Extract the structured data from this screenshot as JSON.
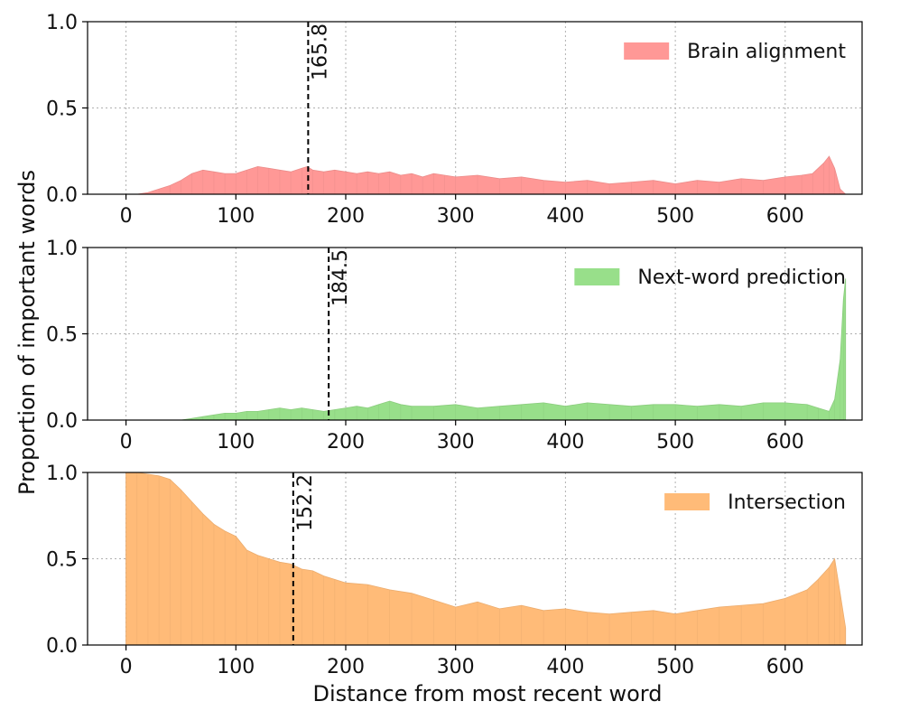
{
  "figure": {
    "ylabel": "Proportion of important words",
    "xlabel": "Distance from most recent word"
  },
  "chart_data": [
    {
      "type": "area",
      "legend": "Brain alignment",
      "legend_position": "top-right",
      "color": "#ff9896",
      "grid": true,
      "xlim": [
        -35,
        670
      ],
      "ylim": [
        0,
        1
      ],
      "xticks": [
        "0",
        "100",
        "200",
        "300",
        "400",
        "500",
        "600"
      ],
      "yticks": [
        "0.0",
        "0.5",
        "1.0"
      ],
      "mean_line": 165.8,
      "mean_label": "165.8",
      "x": [
        0,
        10,
        20,
        30,
        40,
        50,
        60,
        70,
        80,
        90,
        100,
        110,
        120,
        130,
        140,
        150,
        160,
        165,
        170,
        180,
        190,
        200,
        210,
        220,
        230,
        240,
        250,
        260,
        270,
        280,
        290,
        300,
        320,
        340,
        360,
        380,
        400,
        420,
        440,
        460,
        480,
        500,
        520,
        540,
        560,
        580,
        600,
        615,
        625,
        635,
        640,
        645,
        650,
        655
      ],
      "y": [
        0.0,
        0.0,
        0.01,
        0.03,
        0.05,
        0.08,
        0.12,
        0.14,
        0.13,
        0.12,
        0.12,
        0.14,
        0.16,
        0.15,
        0.14,
        0.13,
        0.15,
        0.16,
        0.14,
        0.13,
        0.14,
        0.13,
        0.12,
        0.13,
        0.12,
        0.13,
        0.11,
        0.12,
        0.1,
        0.12,
        0.11,
        0.1,
        0.11,
        0.09,
        0.1,
        0.08,
        0.07,
        0.08,
        0.06,
        0.07,
        0.08,
        0.06,
        0.08,
        0.07,
        0.09,
        0.08,
        0.1,
        0.11,
        0.12,
        0.18,
        0.22,
        0.15,
        0.03,
        0.0
      ]
    },
    {
      "type": "area",
      "legend": "Next-word prediction",
      "legend_position": "top-right",
      "color": "#98df8a",
      "grid": true,
      "xlim": [
        -35,
        670
      ],
      "ylim": [
        0,
        1
      ],
      "xticks": [
        "0",
        "100",
        "200",
        "300",
        "400",
        "500",
        "600"
      ],
      "yticks": [
        "0.0",
        "0.5",
        "1.0"
      ],
      "mean_line": 184.5,
      "mean_label": "184.5",
      "x": [
        0,
        40,
        50,
        60,
        70,
        80,
        90,
        100,
        110,
        120,
        130,
        140,
        150,
        160,
        170,
        180,
        190,
        200,
        210,
        220,
        230,
        240,
        250,
        260,
        280,
        300,
        320,
        340,
        360,
        380,
        400,
        420,
        440,
        460,
        480,
        500,
        520,
        540,
        560,
        580,
        600,
        620,
        630,
        640,
        645,
        650,
        653,
        655
      ],
      "y": [
        0.0,
        0.0,
        0.0,
        0.01,
        0.02,
        0.03,
        0.04,
        0.04,
        0.05,
        0.05,
        0.06,
        0.07,
        0.06,
        0.07,
        0.06,
        0.05,
        0.06,
        0.07,
        0.08,
        0.07,
        0.09,
        0.11,
        0.09,
        0.08,
        0.08,
        0.09,
        0.07,
        0.08,
        0.09,
        0.1,
        0.08,
        0.1,
        0.09,
        0.08,
        0.09,
        0.09,
        0.08,
        0.09,
        0.08,
        0.1,
        0.1,
        0.09,
        0.07,
        0.05,
        0.12,
        0.35,
        0.7,
        0.82
      ]
    },
    {
      "type": "area",
      "legend": "Intersection",
      "legend_position": "top-right",
      "color": "#ffbb78",
      "grid": true,
      "xlim": [
        -35,
        670
      ],
      "ylim": [
        0,
        1
      ],
      "xticks": [
        "0",
        "100",
        "200",
        "300",
        "400",
        "500",
        "600"
      ],
      "yticks": [
        "0.0",
        "0.5",
        "1.0"
      ],
      "mean_line": 152.2,
      "mean_label": "152.2",
      "x": [
        0,
        10,
        20,
        30,
        40,
        50,
        60,
        70,
        80,
        90,
        100,
        110,
        120,
        130,
        140,
        150,
        160,
        170,
        180,
        190,
        200,
        220,
        240,
        260,
        280,
        300,
        320,
        340,
        360,
        380,
        400,
        420,
        440,
        460,
        480,
        500,
        520,
        540,
        560,
        580,
        600,
        620,
        630,
        640,
        645,
        650,
        655
      ],
      "y": [
        1.0,
        1.0,
        0.99,
        0.98,
        0.96,
        0.9,
        0.83,
        0.76,
        0.7,
        0.66,
        0.63,
        0.55,
        0.52,
        0.5,
        0.48,
        0.47,
        0.44,
        0.43,
        0.4,
        0.38,
        0.36,
        0.35,
        0.32,
        0.3,
        0.26,
        0.22,
        0.25,
        0.21,
        0.23,
        0.2,
        0.21,
        0.19,
        0.18,
        0.19,
        0.2,
        0.18,
        0.2,
        0.22,
        0.23,
        0.24,
        0.27,
        0.32,
        0.38,
        0.45,
        0.5,
        0.3,
        0.1
      ]
    }
  ]
}
